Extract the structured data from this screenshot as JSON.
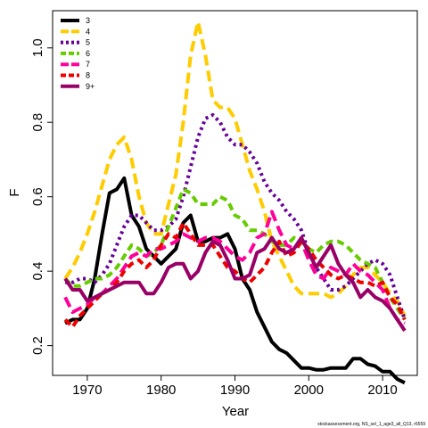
{
  "chart_data": {
    "type": "line",
    "title": "",
    "xlabel": "Year",
    "ylabel": "F",
    "xlim": [
      1965.3,
      2014.7
    ],
    "ylim": [
      0.12,
      1.1
    ],
    "xticks": [
      1970,
      1980,
      1990,
      2000,
      2010
    ],
    "yticks": [
      0.2,
      0.4,
      0.6,
      0.8,
      1.0
    ],
    "ytick_labels": [
      "0.2",
      "0.4",
      "0.6",
      "0.8",
      "1.0"
    ],
    "grid": false,
    "legend_position": "top-left",
    "x": [
      1967,
      1968,
      1969,
      1970,
      1971,
      1972,
      1973,
      1974,
      1975,
      1976,
      1977,
      1978,
      1979,
      1980,
      1981,
      1982,
      1983,
      1984,
      1985,
      1986,
      1987,
      1988,
      1989,
      1990,
      1991,
      1992,
      1993,
      1994,
      1995,
      1996,
      1997,
      1998,
      1999,
      2000,
      2001,
      2002,
      2003,
      2004,
      2005,
      2006,
      2007,
      2008,
      2009,
      2010,
      2011,
      2012,
      2013
    ],
    "series": [
      {
        "name": "3",
        "color": "#000000",
        "dash": "solid",
        "values": [
          0.26,
          0.27,
          0.27,
          0.3,
          0.38,
          0.5,
          0.61,
          0.62,
          0.65,
          0.55,
          0.52,
          0.46,
          0.44,
          0.42,
          0.44,
          0.46,
          0.53,
          0.55,
          0.48,
          0.48,
          0.49,
          0.49,
          0.5,
          0.46,
          0.38,
          0.35,
          0.29,
          0.25,
          0.21,
          0.19,
          0.18,
          0.16,
          0.14,
          0.14,
          0.135,
          0.135,
          0.14,
          0.14,
          0.14,
          0.165,
          0.165,
          0.15,
          0.145,
          0.13,
          0.13,
          0.11,
          0.1
        ]
      },
      {
        "name": "4",
        "color": "#ffcc00",
        "dash": "long",
        "values": [
          0.38,
          0.41,
          0.45,
          0.5,
          0.56,
          0.63,
          0.7,
          0.74,
          0.76,
          0.7,
          0.6,
          0.53,
          0.5,
          0.5,
          0.58,
          0.66,
          0.8,
          0.98,
          1.07,
          0.98,
          0.86,
          0.84,
          0.84,
          0.81,
          0.74,
          0.67,
          0.62,
          0.56,
          0.48,
          0.44,
          0.4,
          0.36,
          0.34,
          0.34,
          0.34,
          0.34,
          0.33,
          0.34,
          0.36,
          0.39,
          0.41,
          0.41,
          0.39,
          0.37,
          0.34,
          0.32,
          0.28
        ]
      },
      {
        "name": "5",
        "color": "#660099",
        "dash": "dot",
        "values": [
          0.37,
          0.37,
          0.38,
          0.38,
          0.37,
          0.39,
          0.42,
          0.47,
          0.52,
          0.55,
          0.55,
          0.53,
          0.51,
          0.51,
          0.52,
          0.54,
          0.6,
          0.68,
          0.76,
          0.81,
          0.82,
          0.8,
          0.76,
          0.74,
          0.74,
          0.72,
          0.69,
          0.64,
          0.61,
          0.59,
          0.56,
          0.54,
          0.51,
          0.45,
          0.41,
          0.38,
          0.35,
          0.35,
          0.36,
          0.38,
          0.4,
          0.42,
          0.43,
          0.42,
          0.39,
          0.33,
          0.27
        ]
      },
      {
        "name": "6",
        "color": "#66cc00",
        "dash": "short",
        "values": [
          0.38,
          0.36,
          0.36,
          0.37,
          0.38,
          0.38,
          0.39,
          0.41,
          0.44,
          0.47,
          0.46,
          0.44,
          0.45,
          0.47,
          0.52,
          0.57,
          0.62,
          0.61,
          0.58,
          0.58,
          0.58,
          0.6,
          0.59,
          0.55,
          0.54,
          0.51,
          0.51,
          0.5,
          0.48,
          0.47,
          0.47,
          0.49,
          0.48,
          0.46,
          0.45,
          0.47,
          0.48,
          0.48,
          0.47,
          0.45,
          0.43,
          0.42,
          0.41,
          0.37,
          0.33,
          0.3,
          0.27
        ]
      },
      {
        "name": "7",
        "color": "#ff0099",
        "dash": "long",
        "values": [
          0.33,
          0.29,
          0.3,
          0.31,
          0.33,
          0.34,
          0.36,
          0.38,
          0.41,
          0.44,
          0.45,
          0.44,
          0.46,
          0.46,
          0.47,
          0.48,
          0.5,
          0.49,
          0.48,
          0.49,
          0.49,
          0.48,
          0.46,
          0.44,
          0.43,
          0.45,
          0.49,
          0.5,
          0.56,
          0.51,
          0.47,
          0.46,
          0.48,
          0.43,
          0.39,
          0.38,
          0.41,
          0.4,
          0.39,
          0.42,
          0.4,
          0.39,
          0.37,
          0.35,
          0.3,
          0.27,
          0.26
        ]
      },
      {
        "name": "8",
        "color": "#ee0000",
        "dash": "short",
        "values": [
          0.27,
          0.25,
          0.28,
          0.3,
          0.32,
          0.34,
          0.35,
          0.37,
          0.4,
          0.42,
          0.43,
          0.41,
          0.43,
          0.47,
          0.5,
          0.49,
          0.53,
          0.5,
          0.47,
          0.47,
          0.47,
          0.44,
          0.41,
          0.4,
          0.38,
          0.37,
          0.39,
          0.41,
          0.45,
          0.48,
          0.44,
          0.45,
          0.48,
          0.46,
          0.43,
          0.41,
          0.39,
          0.38,
          0.39,
          0.38,
          0.37,
          0.37,
          0.36,
          0.37,
          0.33,
          0.31,
          0.27
        ]
      },
      {
        "name": "9+",
        "color": "#990066",
        "dash": "solid",
        "values": [
          0.38,
          0.35,
          0.35,
          0.32,
          0.33,
          0.34,
          0.35,
          0.36,
          0.37,
          0.37,
          0.37,
          0.34,
          0.34,
          0.37,
          0.41,
          0.42,
          0.42,
          0.38,
          0.4,
          0.45,
          0.48,
          0.47,
          0.43,
          0.38,
          0.38,
          0.39,
          0.45,
          0.46,
          0.49,
          0.46,
          0.45,
          0.46,
          0.49,
          0.45,
          0.41,
          0.44,
          0.47,
          0.42,
          0.39,
          0.37,
          0.33,
          0.35,
          0.33,
          0.32,
          0.3,
          0.27,
          0.24
        ]
      }
    ],
    "credit": "stockassessment.org, NS_sel_1_age3_all_Q13, r6559"
  }
}
